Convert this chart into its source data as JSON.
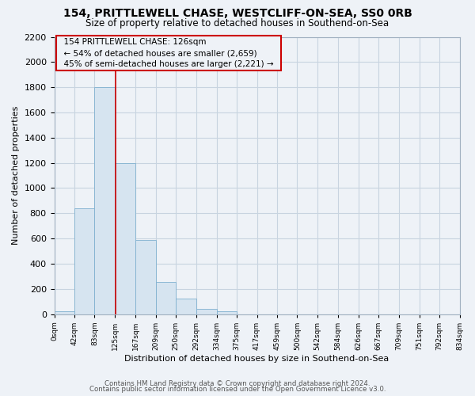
{
  "title": "154, PRITTLEWELL CHASE, WESTCLIFF-ON-SEA, SS0 0RB",
  "subtitle": "Size of property relative to detached houses in Southend-on-Sea",
  "bar_edges": [
    0,
    42,
    83,
    125,
    167,
    209,
    250,
    292,
    334,
    375,
    417,
    459,
    500,
    542,
    584,
    626,
    667,
    709,
    751,
    792,
    834
  ],
  "bar_heights": [
    25,
    840,
    1800,
    1200,
    590,
    255,
    125,
    40,
    25,
    0,
    0,
    0,
    0,
    0,
    0,
    0,
    0,
    0,
    0,
    0
  ],
  "bar_color": "#d6e4f0",
  "bar_edge_color": "#7fb0d0",
  "property_line_x": 126,
  "property_line_color": "#cc0000",
  "annotation_title": "154 PRITTLEWELL CHASE: 126sqm",
  "annotation_line1": "← 54% of detached houses are smaller (2,659)",
  "annotation_line2": "45% of semi-detached houses are larger (2,221) →",
  "xlabel": "Distribution of detached houses by size in Southend-on-Sea",
  "ylabel": "Number of detached properties",
  "x_tick_labels": [
    "0sqm",
    "42sqm",
    "83sqm",
    "125sqm",
    "167sqm",
    "209sqm",
    "250sqm",
    "292sqm",
    "334sqm",
    "375sqm",
    "417sqm",
    "459sqm",
    "500sqm",
    "542sqm",
    "584sqm",
    "626sqm",
    "667sqm",
    "709sqm",
    "751sqm",
    "792sqm",
    "834sqm"
  ],
  "ylim": [
    0,
    2200
  ],
  "yticks": [
    0,
    200,
    400,
    600,
    800,
    1000,
    1200,
    1400,
    1600,
    1800,
    2000,
    2200
  ],
  "footnote1": "Contains HM Land Registry data © Crown copyright and database right 2024.",
  "footnote2": "Contains public sector information licensed under the Open Government Licence v3.0.",
  "grid_color": "#c8d4e0",
  "background_color": "#eef2f7"
}
